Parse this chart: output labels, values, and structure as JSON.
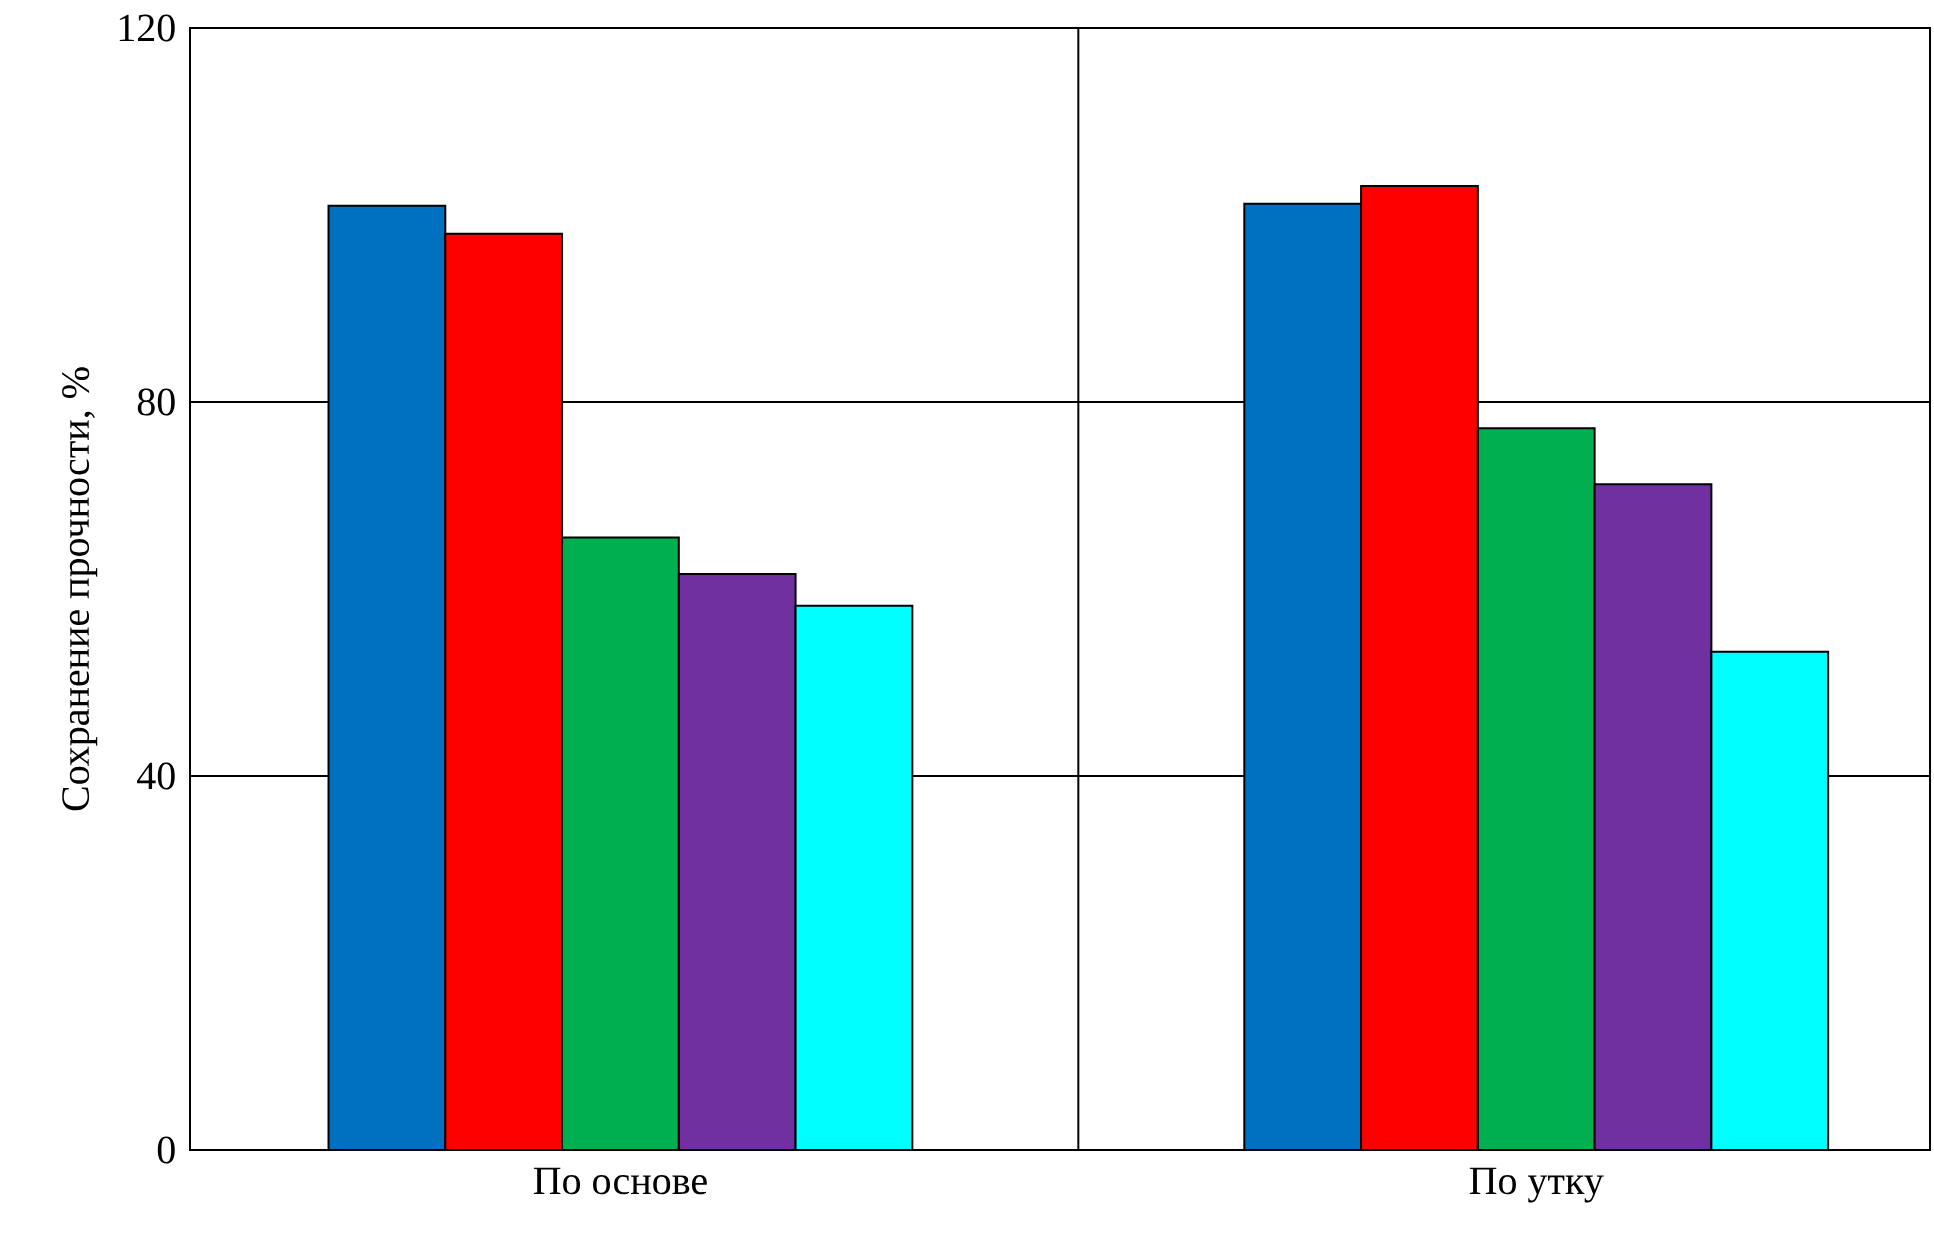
{
  "chart_data": {
    "type": "bar",
    "ylabel": "Сохранение прочности, %",
    "categories": [
      "По основе",
      "По утку"
    ],
    "series": [
      {
        "color": "#0070c0",
        "values": [
          101.0,
          101.2
        ]
      },
      {
        "color": "#ff0000",
        "values": [
          98.0,
          103.1
        ]
      },
      {
        "color": "#00b050",
        "values": [
          65.5,
          77.2
        ]
      },
      {
        "color": "#7030a0",
        "values": [
          61.6,
          71.2
        ]
      },
      {
        "color": "#00ffff",
        "values": [
          58.2,
          53.3
        ]
      }
    ],
    "ylim": [
      0,
      120
    ],
    "yticks": [
      0,
      40,
      80,
      120
    ],
    "grid": true
  }
}
